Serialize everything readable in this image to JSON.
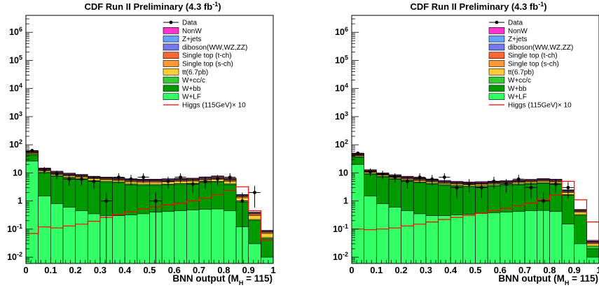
{
  "chart_data": [
    {
      "type": "bar",
      "stacked": true,
      "title": "CDF Run II Preliminary (4.3 fb",
      "title_sup": "-1",
      "title_end": ")",
      "xlabel": "BNN output (M",
      "xlabel_sub": "H",
      "xlabel_end": " = 115)",
      "ylabel": "",
      "xlim": [
        0,
        1
      ],
      "ylim": [
        0.006,
        4000000
      ],
      "yscale": "log",
      "bins": 20,
      "x_ticks": [
        "0",
        "0.1",
        "0.2",
        "0.3",
        "0.4",
        "0.5",
        "0.6",
        "0.7",
        "0.8",
        "0.9",
        "1"
      ],
      "y_ticks": [
        {
          "base": "10",
          "exp": "-2",
          "value": 0.01
        },
        {
          "base": "10",
          "exp": "-1",
          "value": 0.1
        },
        {
          "base": "1",
          "exp": "",
          "value": 1
        },
        {
          "base": "10",
          "exp": "",
          "value": 10
        },
        {
          "base": "10",
          "exp": "2",
          "value": 100
        },
        {
          "base": "10",
          "exp": "3",
          "value": 1000
        },
        {
          "base": "10",
          "exp": "4",
          "value": 10000
        },
        {
          "base": "10",
          "exp": "5",
          "value": 100000
        },
        {
          "base": "10",
          "exp": "6",
          "value": 1000000
        }
      ],
      "legend_position": "top-right",
      "stack_totals": {
        "W+LF": [
          26,
          1.5,
          0.8,
          0.6,
          0.45,
          0.35,
          0.3,
          0.3,
          0.32,
          0.35,
          0.4,
          0.42,
          0.45,
          0.48,
          0.5,
          0.52,
          0.45,
          0.12,
          0.03,
          0.01
        ],
        "W+bb": [
          43,
          10,
          7.5,
          6.5,
          5.8,
          5.0,
          4.6,
          4.4,
          3.8,
          3.6,
          3.6,
          3.7,
          3.9,
          4.0,
          4.4,
          4.7,
          3.8,
          0.9,
          0.2,
          0.045
        ],
        "W+cc/c": [
          46,
          10.8,
          8.1,
          7.0,
          6.2,
          5.4,
          5.0,
          4.8,
          4.1,
          3.9,
          3.9,
          4.0,
          4.2,
          4.3,
          4.7,
          5.0,
          4.1,
          1.0,
          0.22,
          0.05
        ],
        "tt(6.7pb)": [
          50,
          12,
          9.1,
          7.8,
          7.0,
          6.2,
          5.7,
          5.4,
          4.8,
          4.6,
          4.6,
          4.8,
          5.0,
          5.1,
          5.6,
          6.0,
          5.0,
          1.3,
          0.3,
          0.07
        ],
        "Single top (s-ch)": [
          52,
          12.6,
          9.6,
          8.2,
          7.4,
          6.5,
          6.0,
          5.7,
          5.1,
          4.9,
          4.9,
          5.1,
          5.3,
          5.4,
          6.0,
          6.4,
          5.4,
          1.4,
          0.33,
          0.075
        ],
        "Single top (t-ch)": [
          54,
          13.2,
          10.1,
          8.6,
          7.8,
          6.8,
          6.3,
          6.0,
          5.4,
          5.2,
          5.2,
          5.4,
          5.6,
          5.7,
          6.3,
          6.8,
          5.7,
          1.5,
          0.36,
          0.08
        ],
        "diboson(WW,WZ,ZZ)": [
          56,
          13.8,
          10.6,
          9.0,
          8.2,
          7.1,
          6.6,
          6.3,
          5.7,
          5.5,
          5.5,
          5.7,
          5.9,
          6.0,
          6.7,
          7.2,
          6.0,
          1.6,
          0.38,
          0.085
        ],
        "Z+jets": [
          58,
          14.2,
          10.9,
          9.3,
          8.4,
          7.3,
          6.8,
          6.5,
          5.9,
          5.7,
          5.7,
          5.9,
          6.1,
          6.2,
          6.9,
          7.4,
          6.2,
          1.65,
          0.39,
          0.088
        ],
        "NonW": [
          62,
          15,
          11.5,
          9.8,
          8.8,
          7.6,
          7.1,
          6.8,
          6.2,
          6.0,
          6.0,
          6.2,
          6.4,
          6.5,
          7.2,
          7.8,
          6.5,
          1.7,
          0.4,
          0.09
        ]
      },
      "data_points": [
        {
          "x": 0.025,
          "y": 62
        },
        {
          "x": 0.075,
          "y": 12.5
        },
        {
          "x": 0.125,
          "y": 9
        },
        {
          "x": 0.175,
          "y": 6
        },
        {
          "x": 0.225,
          "y": 6
        },
        {
          "x": 0.275,
          "y": 5
        },
        {
          "x": 0.325,
          "y": 1
        },
        {
          "x": 0.375,
          "y": 7
        },
        {
          "x": 0.425,
          "y": 6
        },
        {
          "x": 0.475,
          "y": 7
        },
        {
          "x": 0.525,
          "y": 1
        },
        {
          "x": 0.575,
          "y": 5
        },
        {
          "x": 0.625,
          "y": 7
        },
        {
          "x": 0.675,
          "y": 4
        },
        {
          "x": 0.725,
          "y": 5
        },
        {
          "x": 0.775,
          "y": 6
        },
        {
          "x": 0.825,
          "y": 7
        },
        {
          "x": 0.875,
          "y": 1
        },
        {
          "x": 0.925,
          "y": 2
        }
      ],
      "higgs_x10": [
        0.07,
        0.12,
        0.11,
        0.13,
        0.15,
        0.19,
        0.26,
        0.33,
        0.42,
        0.52,
        0.62,
        0.72,
        0.85,
        1.0,
        1.25,
        1.7,
        2.4,
        3.2,
        0.45,
        0.04
      ],
      "legend": [
        {
          "label": "Data",
          "kind": "marker",
          "color": "#000000"
        },
        {
          "label": "NonW",
          "kind": "fill",
          "color": "#ff33cc"
        },
        {
          "label": "Z+jets",
          "kind": "fill",
          "color": "#66a3ff"
        },
        {
          "label": "diboson(WW,WZ,ZZ)",
          "kind": "fill",
          "color": "#7777ee"
        },
        {
          "label": "Single top (t-ch)",
          "kind": "fill",
          "color": "#ff6633"
        },
        {
          "label": "Single top (s-ch)",
          "kind": "fill",
          "color": "#ff9933"
        },
        {
          "label": "tt(6.7pb)",
          "kind": "fill",
          "color": "#ffcc33"
        },
        {
          "label": "W+cc/c",
          "kind": "fill",
          "color": "#33cc33"
        },
        {
          "label": "W+bb",
          "kind": "fill",
          "color": "#009900"
        },
        {
          "label": "W+LF",
          "kind": "fill",
          "color": "#33ff66"
        },
        {
          "label": "Higgs (115GeV)× 10",
          "kind": "line",
          "color": "#ff0000"
        }
      ]
    },
    {
      "type": "bar",
      "stacked": true,
      "title": "CDF Run II Preliminary (4.3 fb",
      "title_sup": "-1",
      "title_end": ")",
      "xlabel": "BNN output (M",
      "xlabel_sub": "H",
      "xlabel_end": " = 115)",
      "ylabel": "",
      "xlim": [
        0,
        1
      ],
      "ylim": [
        0.006,
        4000000
      ],
      "yscale": "log",
      "bins": 20,
      "x_ticks": [
        "0",
        "0.1",
        "0.2",
        "0.3",
        "0.4",
        "0.5",
        "0.6",
        "0.7",
        "0.8",
        "0.9",
        "1"
      ],
      "y_ticks": [
        {
          "base": "10",
          "exp": "-2",
          "value": 0.01
        },
        {
          "base": "10",
          "exp": "-1",
          "value": 0.1
        },
        {
          "base": "1",
          "exp": "",
          "value": 1
        },
        {
          "base": "10",
          "exp": "",
          "value": 10
        },
        {
          "base": "10",
          "exp": "2",
          "value": 100
        },
        {
          "base": "10",
          "exp": "3",
          "value": 1000
        },
        {
          "base": "10",
          "exp": "4",
          "value": 10000
        },
        {
          "base": "10",
          "exp": "5",
          "value": 100000
        },
        {
          "base": "10",
          "exp": "6",
          "value": 1000000
        }
      ],
      "legend_position": "top-right",
      "stack_totals": {
        "W+LF": [
          20,
          1.5,
          0.8,
          0.6,
          0.45,
          0.35,
          0.3,
          0.3,
          0.32,
          0.34,
          0.36,
          0.38,
          0.4,
          0.42,
          0.45,
          0.46,
          0.42,
          0.15,
          0.03,
          0.01
        ],
        "W+bb": [
          36,
          9,
          7,
          6,
          5.2,
          4.5,
          4.0,
          3.6,
          3.3,
          3.1,
          3.2,
          3.4,
          3.6,
          3.8,
          4.0,
          4.2,
          3.9,
          1.6,
          0.3,
          0.02
        ],
        "W+cc/c": [
          38,
          9.6,
          7.5,
          6.4,
          5.6,
          4.8,
          4.3,
          3.9,
          3.6,
          3.4,
          3.5,
          3.7,
          3.9,
          4.1,
          4.3,
          4.5,
          4.2,
          1.7,
          0.33,
          0.025
        ],
        "tt(6.7pb)": [
          41,
          10.5,
          8.2,
          7.0,
          6.1,
          5.3,
          4.8,
          4.3,
          4.0,
          3.8,
          3.9,
          4.1,
          4.3,
          4.6,
          4.8,
          5.0,
          4.7,
          2.0,
          0.4,
          0.03
        ],
        "Single top (s-ch)": [
          42.5,
          11,
          8.6,
          7.3,
          6.4,
          5.6,
          5.0,
          4.5,
          4.2,
          4.0,
          4.1,
          4.3,
          4.5,
          4.8,
          5.0,
          5.3,
          5.0,
          2.1,
          0.42,
          0.032
        ],
        "Single top (t-ch)": [
          44,
          11.5,
          9.0,
          7.6,
          6.7,
          5.9,
          5.2,
          4.7,
          4.4,
          4.2,
          4.3,
          4.5,
          4.7,
          5.0,
          5.3,
          5.6,
          5.3,
          2.2,
          0.45,
          0.034
        ],
        "diboson(WW,WZ,ZZ)": [
          45.5,
          12,
          9.4,
          8.0,
          7.0,
          6.2,
          5.5,
          5.0,
          4.6,
          4.4,
          4.5,
          4.7,
          4.9,
          5.2,
          5.5,
          5.9,
          5.6,
          2.35,
          0.47,
          0.036
        ],
        "Z+jets": [
          47,
          12.3,
          9.6,
          8.2,
          7.2,
          6.4,
          5.7,
          5.1,
          4.7,
          4.5,
          4.6,
          4.8,
          5.0,
          5.3,
          5.6,
          6.0,
          5.7,
          2.4,
          0.48,
          0.037
        ],
        "NonW": [
          50,
          13,
          10,
          8.6,
          7.6,
          6.7,
          6.0,
          5.4,
          5.0,
          4.8,
          4.9,
          5.1,
          5.3,
          5.6,
          5.9,
          6.3,
          6.0,
          2.5,
          0.5,
          0.04
        ]
      },
      "data_points": [
        {
          "x": 0.025,
          "y": 50
        },
        {
          "x": 0.075,
          "y": 11
        },
        {
          "x": 0.125,
          "y": 9
        },
        {
          "x": 0.175,
          "y": 7
        },
        {
          "x": 0.225,
          "y": 5
        },
        {
          "x": 0.275,
          "y": 7
        },
        {
          "x": 0.325,
          "y": 6
        },
        {
          "x": 0.375,
          "y": 7
        },
        {
          "x": 0.425,
          "y": 3
        },
        {
          "x": 0.475,
          "y": 4
        },
        {
          "x": 0.525,
          "y": 3
        },
        {
          "x": 0.575,
          "y": 5
        },
        {
          "x": 0.625,
          "y": 4
        },
        {
          "x": 0.675,
          "y": 6
        },
        {
          "x": 0.725,
          "y": 3
        },
        {
          "x": 0.775,
          "y": 1
        },
        {
          "x": 0.825,
          "y": 4
        },
        {
          "x": 0.875,
          "y": 3
        }
      ],
      "higgs_x10": [
        0.1,
        0.095,
        0.1,
        0.11,
        0.13,
        0.15,
        0.18,
        0.22,
        0.26,
        0.31,
        0.37,
        0.45,
        0.55,
        0.68,
        0.85,
        1.1,
        1.6,
        5.0,
        1.1,
        0.18
      ],
      "legend": [
        {
          "label": "Data",
          "kind": "marker",
          "color": "#000000"
        },
        {
          "label": "NonW",
          "kind": "fill",
          "color": "#ff33cc"
        },
        {
          "label": "Z+jets",
          "kind": "fill",
          "color": "#66a3ff"
        },
        {
          "label": "diboson(WW,WZ,ZZ)",
          "kind": "fill",
          "color": "#7777ee"
        },
        {
          "label": "Single top (t-ch)",
          "kind": "fill",
          "color": "#ff6633"
        },
        {
          "label": "Single top (s-ch)",
          "kind": "fill",
          "color": "#ff9933"
        },
        {
          "label": "tt(6.7pb)",
          "kind": "fill",
          "color": "#ffcc33"
        },
        {
          "label": "W+cc/c",
          "kind": "fill",
          "color": "#33cc33"
        },
        {
          "label": "W+bb",
          "kind": "fill",
          "color": "#009900"
        },
        {
          "label": "W+LF",
          "kind": "fill",
          "color": "#33ff66"
        },
        {
          "label": "Higgs (115GeV)× 10",
          "kind": "line",
          "color": "#ff0000"
        }
      ]
    }
  ]
}
